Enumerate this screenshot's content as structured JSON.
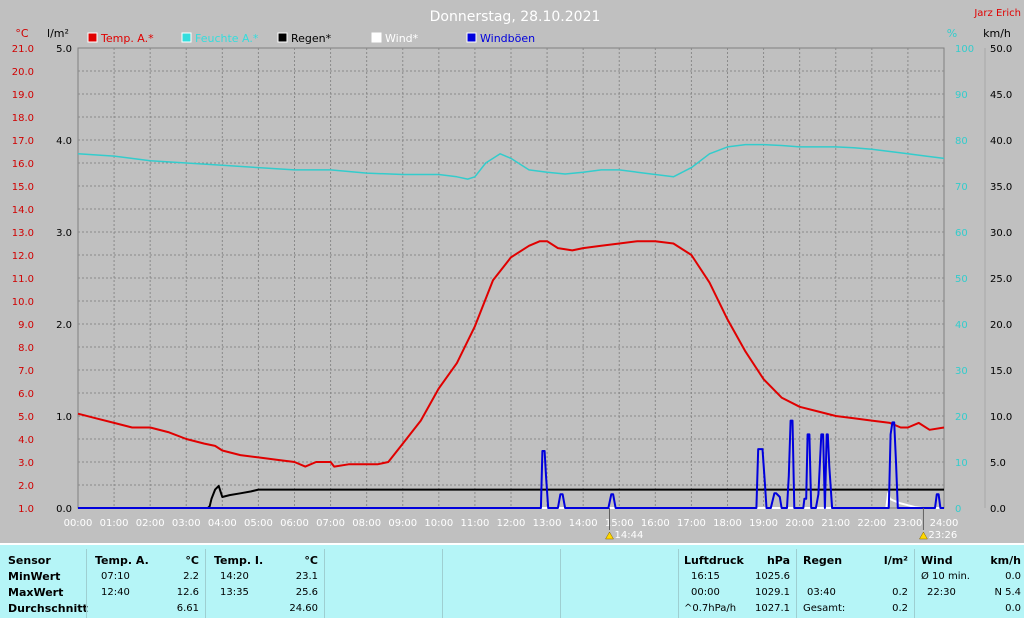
{
  "chart_data": {
    "type": "line",
    "title": "Donnerstag, 28.10.2021",
    "author": "Jarz Erich",
    "x_range": [
      0,
      24
    ],
    "x_ticks": [
      "00:00",
      "01:00",
      "02:00",
      "03:00",
      "04:00",
      "05:00",
      "06:00",
      "07:00",
      "08:00",
      "09:00",
      "10:00",
      "11:00",
      "12:00",
      "13:00",
      "14:00",
      "15:00",
      "16:00",
      "17:00",
      "18:00",
      "19:00",
      "20:00",
      "21:00",
      "22:00",
      "23:00",
      "24:00"
    ],
    "axes": {
      "temp": {
        "unit": "°C",
        "min": 1.0,
        "max": 21.0,
        "step": 1.0,
        "color": "#d00000"
      },
      "rain": {
        "unit": "l/m²",
        "min": 0.0,
        "max": 5.0,
        "step": 1.0,
        "color": "#000000"
      },
      "humidity": {
        "unit": "%",
        "min": 0,
        "max": 100,
        "step": 10,
        "color": "#33cccc"
      },
      "wind": {
        "unit": "km/h",
        "min": 0.0,
        "max": 50.0,
        "step": 5.0,
        "color": "#000000"
      }
    },
    "legend": [
      {
        "label": "Temp. A.*",
        "color": "#e00000"
      },
      {
        "label": "Feuchte A.*",
        "color": "#33dddd"
      },
      {
        "label": "Regen*",
        "color": "#000000"
      },
      {
        "label": "Wind*",
        "color": "#ffffff"
      },
      {
        "label": "Windböen",
        "color": "#0000dd"
      }
    ],
    "markers": [
      {
        "x": 14.73,
        "label": "14:44"
      },
      {
        "x": 23.43,
        "label": "23:26"
      }
    ],
    "series": [
      {
        "name": "Temp. A.*",
        "axis": "temp",
        "color": "#e00000",
        "x": [
          0,
          0.5,
          1,
          1.5,
          2,
          2.5,
          3,
          3.5,
          3.8,
          4,
          4.5,
          5,
          5.5,
          6,
          6.3,
          6.6,
          7,
          7.1,
          7.5,
          8,
          8.3,
          8.6,
          9,
          9.5,
          10,
          10.5,
          11,
          11.5,
          12,
          12.5,
          12.8,
          13,
          13.3,
          13.7,
          14,
          14.5,
          15,
          15.5,
          16,
          16.5,
          17,
          17.5,
          18,
          18.5,
          19,
          19.5,
          20,
          20.5,
          21,
          21.5,
          22,
          22.5,
          22.8,
          23,
          23.3,
          23.6,
          24
        ],
        "y": [
          5.1,
          4.9,
          4.7,
          4.5,
          4.5,
          4.3,
          4.0,
          3.8,
          3.7,
          3.5,
          3.3,
          3.2,
          3.1,
          3.0,
          2.8,
          3.0,
          3.0,
          2.8,
          2.9,
          2.9,
          2.9,
          3.0,
          3.8,
          4.8,
          6.2,
          7.3,
          8.9,
          10.9,
          11.9,
          12.4,
          12.6,
          12.6,
          12.3,
          12.2,
          12.3,
          12.4,
          12.5,
          12.6,
          12.6,
          12.5,
          12.0,
          10.8,
          9.2,
          7.8,
          6.6,
          5.8,
          5.4,
          5.2,
          5.0,
          4.9,
          4.8,
          4.7,
          4.5,
          4.5,
          4.7,
          4.4,
          4.5
        ]
      },
      {
        "name": "Feuchte A.*",
        "axis": "humidity",
        "color": "#33cccc",
        "x": [
          0,
          1,
          2,
          3,
          4,
          5,
          6,
          7,
          8,
          9,
          10,
          10.5,
          10.8,
          11,
          11.3,
          11.7,
          12,
          12.5,
          13,
          13.5,
          14,
          14.5,
          15,
          15.5,
          16,
          16.5,
          17,
          17.5,
          18,
          18.5,
          19,
          19.5,
          20,
          20.5,
          21,
          21.5,
          22,
          22.5,
          23,
          23.5,
          24
        ],
        "y": [
          77,
          76.5,
          75.5,
          75,
          74.5,
          74,
          73.5,
          73.5,
          72.8,
          72.5,
          72.5,
          72,
          71.5,
          72,
          75,
          77,
          76,
          73.5,
          73,
          72.6,
          73,
          73.5,
          73.5,
          73,
          72.5,
          72,
          74,
          77,
          78.5,
          79,
          79,
          78.8,
          78.5,
          78.5,
          78.5,
          78.3,
          78,
          77.5,
          77,
          76.5,
          76
        ]
      },
      {
        "name": "Regen*",
        "axis": "rain",
        "color": "#000000",
        "x": [
          0,
          3.6,
          3.65,
          3.7,
          3.8,
          3.9,
          4,
          4.2,
          4.5,
          4.8,
          5,
          5.5,
          24
        ],
        "y": [
          0,
          0,
          0.02,
          0.1,
          0.2,
          0.24,
          0.12,
          0.14,
          0.16,
          0.18,
          0.2,
          0.2,
          0.2
        ]
      },
      {
        "name": "Wind*",
        "axis": "wind",
        "color": "#ffffff",
        "x": [
          0,
          22.4,
          22.45,
          22.5,
          22.6,
          22.8,
          23,
          23.2,
          23.4,
          24
        ],
        "y": [
          0,
          0,
          1.6,
          1.0,
          0.8,
          0.5,
          0.3,
          0.1,
          0,
          0
        ]
      },
      {
        "name": "Windböen",
        "axis": "wind",
        "color": "#0000dd",
        "x": [
          0,
          12.83,
          12.87,
          12.93,
          12.97,
          13.03,
          13.08,
          13.3,
          13.37,
          13.43,
          13.5,
          14.7,
          14.78,
          14.83,
          14.9,
          18.8,
          18.85,
          18.9,
          18.97,
          19.03,
          19.08,
          19.2,
          19.3,
          19.35,
          19.45,
          19.5,
          19.65,
          19.7,
          19.75,
          19.8,
          19.85,
          20.1,
          20.13,
          20.18,
          20.22,
          20.27,
          20.32,
          20.45,
          20.52,
          20.6,
          20.65,
          20.7,
          20.75,
          20.78,
          20.82,
          20.9,
          22.47,
          22.52,
          22.57,
          22.62,
          22.67,
          22.72,
          23.75,
          23.8,
          23.85,
          23.9,
          24
        ],
        "y": [
          0,
          0,
          6.2,
          6.2,
          3.5,
          0,
          0,
          0,
          1.5,
          1.5,
          0,
          0,
          1.5,
          1.5,
          0,
          0,
          6.4,
          6.4,
          6.4,
          3,
          0,
          0,
          1.6,
          1.6,
          1.2,
          0,
          0,
          3.5,
          9.5,
          9.5,
          0,
          0,
          1,
          1,
          8,
          8,
          0,
          0,
          1.5,
          8,
          8,
          0,
          8,
          8,
          4.5,
          0,
          0,
          8,
          9.3,
          9.3,
          5,
          0,
          0,
          1.5,
          1.5,
          0,
          0
        ]
      }
    ]
  },
  "stats": {
    "sensor": {
      "label": "Sensor",
      "min": "MinWert",
      "max": "MaxWert",
      "avg": "Durchschnitt"
    },
    "temp_a": {
      "label": "Temp. A.",
      "unit": "°C",
      "min_time": "07:10",
      "min_val": "2.2",
      "max_time": "12:40",
      "max_val": "12.6",
      "avg": "6.61"
    },
    "temp_i": {
      "label": "Temp. I.",
      "unit": "°C",
      "min_time": "14:20",
      "min_val": "23.1",
      "max_time": "13:35",
      "max_val": "25.6",
      "avg": "24.60"
    },
    "pressure": {
      "label": "Luftdruck",
      "unit": "hPa",
      "min_time": "16:15",
      "min_val": "1025.6",
      "max_time": "00:00",
      "max_val": "1029.1",
      "trend_label": "^0.7hPa/h",
      "trend_val": "1027.1"
    },
    "rain": {
      "label": "Regen",
      "unit": "l/m²",
      "max_time": "03:40",
      "max_val": "0.2",
      "total_label": "Gesamt:",
      "total_val": "0.2"
    },
    "wind": {
      "label": "Wind",
      "unit": "km/h",
      "min_label": "Ø 10 min.",
      "min_val": "0.0",
      "max_time": "22:30",
      "max_val": "N 5.4",
      "avg": "0.0"
    }
  }
}
